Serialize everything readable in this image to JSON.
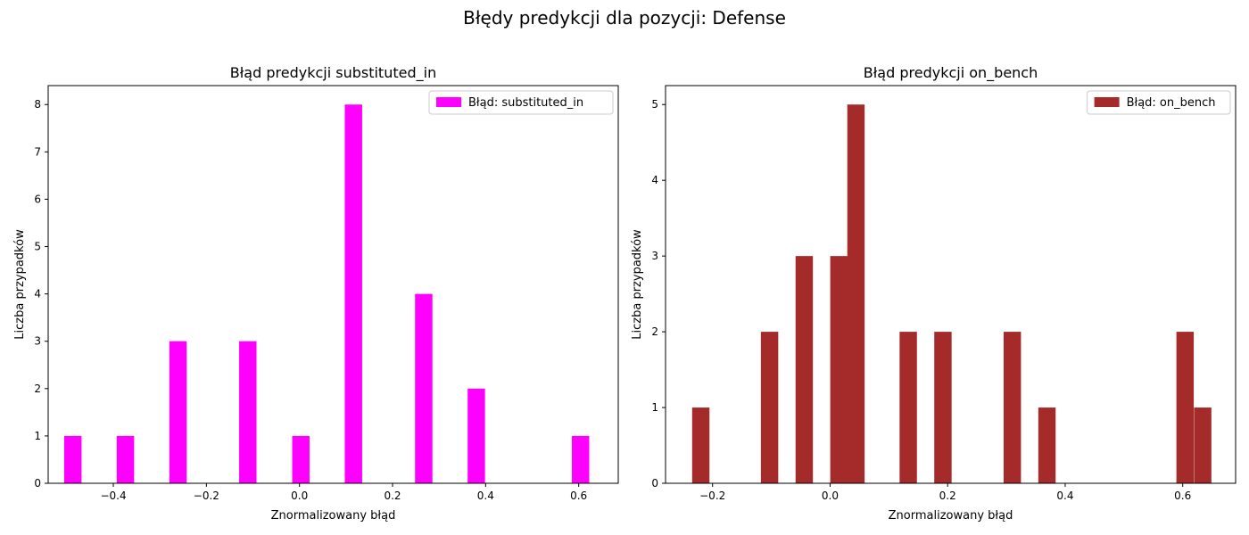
{
  "suptitle": "Błędy predykcji dla pozycji: Defense",
  "chart_data": [
    {
      "type": "bar",
      "title": "Błąd predykcji substituted_in",
      "xlabel": "Znormalizowany błąd",
      "ylabel": "Liczba przypadków",
      "xlim": [
        -0.54,
        0.685
      ],
      "ylim": [
        0,
        8.4
      ],
      "xticks": [
        -0.4,
        -0.2,
        0.0,
        0.2,
        0.4,
        0.6
      ],
      "xtick_labels": [
        "−0.4",
        "−0.2",
        "0.0",
        "0.2",
        "0.4",
        "0.6"
      ],
      "yticks": [
        0,
        1,
        2,
        3,
        4,
        5,
        6,
        7,
        8
      ],
      "yticks_labels": [
        "0",
        "1",
        "2",
        "3",
        "4",
        "5",
        "6",
        "7",
        "8"
      ],
      "bin_width": 0.0373,
      "series": [
        {
          "name": "Błąd: substituted_in",
          "color": "#ff00ff",
          "bins": [
            {
              "x": -0.487,
              "value": 1
            },
            {
              "x": -0.374,
              "value": 1
            },
            {
              "x": -0.261,
              "value": 3
            },
            {
              "x": -0.111,
              "value": 3
            },
            {
              "x": 0.003,
              "value": 1
            },
            {
              "x": 0.116,
              "value": 8
            },
            {
              "x": 0.267,
              "value": 4
            },
            {
              "x": 0.38,
              "value": 2
            },
            {
              "x": 0.604,
              "value": 1
            }
          ]
        }
      ],
      "legend_position": "upper right"
    },
    {
      "type": "bar",
      "title": "Błąd predykcji on_bench",
      "xlabel": "Znormalizowany błąd",
      "ylabel": "Liczba przypadków",
      "xlim": [
        -0.28,
        0.69
      ],
      "ylim": [
        0,
        5.25
      ],
      "xticks": [
        -0.2,
        0.0,
        0.2,
        0.4,
        0.6
      ],
      "xtick_labels": [
        "−0.2",
        "0.0",
        "0.2",
        "0.4",
        "0.6"
      ],
      "yticks": [
        0,
        1,
        2,
        3,
        4,
        5
      ],
      "yticks_labels": [
        "0",
        "1",
        "2",
        "3",
        "4",
        "5"
      ],
      "bin_width": 0.0295,
      "series": [
        {
          "name": "Błąd: on_bench",
          "color": "#a52a2a",
          "bins": [
            {
              "x": -0.22,
              "value": 1
            },
            {
              "x": -0.103,
              "value": 2
            },
            {
              "x": -0.044,
              "value": 3
            },
            {
              "x": 0.015,
              "value": 3
            },
            {
              "x": 0.044,
              "value": 5
            },
            {
              "x": 0.133,
              "value": 2
            },
            {
              "x": 0.192,
              "value": 2
            },
            {
              "x": 0.31,
              "value": 2
            },
            {
              "x": 0.369,
              "value": 1
            },
            {
              "x": 0.604,
              "value": 2
            },
            {
              "x": 0.634,
              "value": 1
            }
          ]
        }
      ],
      "legend_position": "upper right"
    }
  ]
}
